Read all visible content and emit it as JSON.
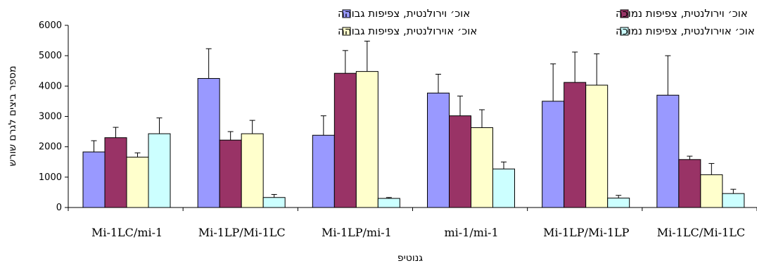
{
  "chart_data": {
    "type": "bar",
    "title": "",
    "xlabel": "גנוטיפ",
    "ylabel": "מספר ביצים לגרם שורש",
    "ylim": [
      0,
      6000
    ],
    "yticks": [
      "0",
      "1000",
      "2000",
      "3000",
      "4000",
      "5000",
      "6000"
    ],
    "grid": false,
    "legend_position": "top",
    "categories": [
      "Mi-1LC/mi-1",
      "Mi-1LP/Mi-1LC",
      "Mi-1LP/mi-1",
      "mi-1/mi-1",
      "Mi-1LP/Mi-1LP",
      "Mi-1LC/Mi-1LC"
    ],
    "series": [
      {
        "name": "אוכ׳ וירולנטית, צפיפות גבוהה",
        "color": "#9999FF",
        "values": [
          1830,
          4250,
          2380,
          3770,
          3500,
          3700
        ],
        "errors": [
          370,
          980,
          640,
          620,
          1230,
          1300
        ]
      },
      {
        "name": "אוכ׳ וירולנטית, צפיפות נמוכה",
        "color": "#993366",
        "values": [
          2300,
          2220,
          4420,
          3020,
          4120,
          1580
        ],
        "errors": [
          340,
          280,
          750,
          650,
          1000,
          110
        ]
      },
      {
        "name": "אוכ׳ אוירולנטית, צפיפות גבוהה",
        "color": "#FFFFCC",
        "values": [
          1660,
          2430,
          4480,
          2630,
          4030,
          1080
        ],
        "errors": [
          140,
          440,
          1000,
          590,
          1030,
          370
        ]
      },
      {
        "name": "אוכ׳ אוירולנטית, צפיפות נמוכה",
        "color": "#CCFFFF",
        "values": [
          2430,
          330,
          300,
          1270,
          310,
          460
        ],
        "errors": [
          520,
          100,
          30,
          230,
          90,
          140
        ]
      }
    ]
  }
}
